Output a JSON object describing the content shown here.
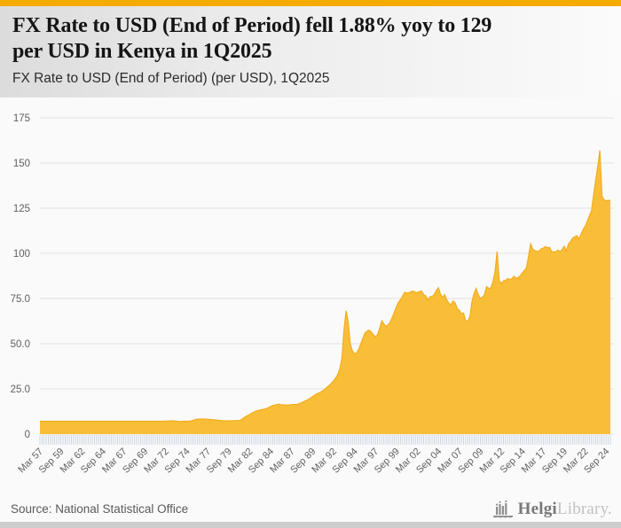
{
  "header": {
    "title_line1": "FX Rate to USD (End of Period) fell 1.88% yoy to 129",
    "title_line2": "per USD in Kenya in 1Q2025",
    "subtitle": "FX Rate to USD (End of Period) (per USD), 1Q2025"
  },
  "footer": {
    "source": "Source: National Statistical Office",
    "logo_strong": "Helgi",
    "logo_light": "Library."
  },
  "colors": {
    "accent_bar": "#f5ab00",
    "area_fill": "#f9be37",
    "area_stroke": "#f2ad1f",
    "grid": "#e3e3e3",
    "axis_tick": "#c9d2de",
    "axis_label": "#5f5f5f",
    "bottom_strip": "#cdcdcd",
    "chart_bg": "#fafafa"
  },
  "chart_data": {
    "type": "area",
    "title": "FX Rate to USD (End of Period) (per USD), 1Q2025",
    "series_name": "FX Rate to USD (End of Period), Kenya",
    "frequency": "quarterly",
    "x_start": "1957Q1",
    "x_end": "2025Q1",
    "ylim": [
      0,
      175
    ],
    "grid": "horizontal",
    "legend": "none",
    "y_ticks": [
      {
        "value": 0,
        "label": "0"
      },
      {
        "value": 25,
        "label": "25.0"
      },
      {
        "value": 50,
        "label": "50.0"
      },
      {
        "value": 75,
        "label": "75.0"
      },
      {
        "value": 100,
        "label": "100"
      },
      {
        "value": 125,
        "label": "125"
      },
      {
        "value": 150,
        "label": "150"
      },
      {
        "value": 175,
        "label": "175"
      }
    ],
    "x_label_step": 10,
    "x_tick_labels": [
      "Mar 57",
      "Sep 59",
      "Mar 62",
      "Sep 64",
      "Mar 67",
      "Sep 69",
      "Mar 72",
      "Sep 74",
      "Mar 77",
      "Sep 79",
      "Mar 82",
      "Sep 84",
      "Mar 87",
      "Sep 89",
      "Mar 92",
      "Sep 94",
      "Mar 97",
      "Sep 99",
      "Mar 02",
      "Sep 04",
      "Mar 07",
      "Sep 09",
      "Mar 12",
      "Sep 14",
      "Mar 17",
      "Sep 19",
      "Mar 22",
      "Sep 24"
    ],
    "values": [
      7.14,
      7.14,
      7.14,
      7.14,
      7.14,
      7.14,
      7.14,
      7.14,
      7.14,
      7.14,
      7.14,
      7.14,
      7.14,
      7.14,
      7.14,
      7.14,
      7.14,
      7.14,
      7.14,
      7.14,
      7.14,
      7.14,
      7.14,
      7.14,
      7.14,
      7.14,
      7.14,
      7.14,
      7.14,
      7.14,
      7.14,
      7.14,
      7.14,
      7.14,
      7.14,
      7.14,
      7.14,
      7.14,
      7.14,
      7.14,
      7.14,
      7.14,
      7.14,
      7.14,
      7.14,
      7.14,
      7.14,
      7.14,
      7.14,
      7.14,
      7.14,
      7.14,
      7.14,
      7.14,
      7.14,
      7.14,
      7.14,
      7.14,
      7.14,
      7.14,
      7.2,
      7.25,
      7.3,
      7.34,
      7.25,
      7.15,
      7.05,
      7.0,
      7.05,
      7.1,
      7.12,
      7.14,
      7.3,
      7.6,
      8.0,
      8.26,
      8.3,
      8.35,
      8.32,
      8.31,
      8.2,
      8.1,
      8.0,
      7.95,
      7.8,
      7.7,
      7.55,
      7.4,
      7.38,
      7.35,
      7.34,
      7.33,
      7.4,
      7.45,
      7.5,
      7.57,
      7.9,
      8.9,
      9.6,
      10.29,
      10.9,
      11.6,
      12.2,
      12.73,
      13.1,
      13.4,
      13.6,
      13.8,
      14.2,
      14.7,
      15.3,
      15.78,
      16.0,
      16.4,
      16.6,
      16.28,
      16.2,
      16.1,
      16.0,
      16.04,
      16.3,
      16.4,
      16.45,
      16.52,
      17.0,
      17.5,
      18.1,
      18.6,
      19.2,
      20.0,
      20.8,
      21.6,
      22.2,
      22.8,
      23.4,
      24.08,
      25.0,
      26.0,
      27.0,
      28.07,
      29.5,
      31.0,
      33.0,
      36.22,
      42.0,
      58.0,
      68.2,
      62.0,
      50.0,
      46.0,
      44.5,
      44.84,
      47.0,
      50.0,
      53.0,
      55.94,
      57.0,
      57.5,
      56.5,
      55.02,
      53.8,
      55.0,
      58.5,
      62.68,
      61.0,
      59.5,
      60.5,
      61.91,
      64.5,
      67.5,
      70.5,
      72.93,
      74.5,
      76.5,
      78.5,
      78.04,
      78.2,
      78.8,
      79.1,
      78.6,
      78.3,
      78.9,
      79.2,
      77.07,
      76.5,
      74.2,
      76.0,
      76.14,
      77.2,
      79.5,
      81.0,
      77.34,
      75.5,
      77.2,
      74.2,
      72.37,
      71.6,
      73.6,
      72.6,
      69.4,
      68.5,
      66.6,
      67.0,
      62.68,
      62.5,
      64.8,
      73.2,
      77.71,
      80.6,
      77.2,
      75.0,
      75.82,
      77.2,
      81.6,
      80.6,
      80.75,
      84.2,
      89.9,
      101.0,
      85.07,
      83.2,
      84.8,
      85.1,
      86.0,
      85.6,
      85.9,
      87.3,
      86.31,
      86.5,
      87.6,
      89.2,
      90.44,
      92.1,
      98.6,
      105.3,
      102.31,
      101.5,
      101.2,
      101.3,
      102.52,
      102.9,
      103.7,
      103.2,
      103.23,
      101.0,
      100.8,
      100.9,
      101.85,
      100.9,
      102.1,
      103.9,
      101.34,
      105.1,
      106.5,
      108.4,
      109.17,
      109.8,
      107.9,
      110.5,
      113.14,
      115.0,
      117.8,
      120.9,
      123.37,
      132.3,
      140.5,
      148.1,
      157.0,
      131.8,
      129.5,
      129.2,
      129.29,
      129.33
    ]
  }
}
